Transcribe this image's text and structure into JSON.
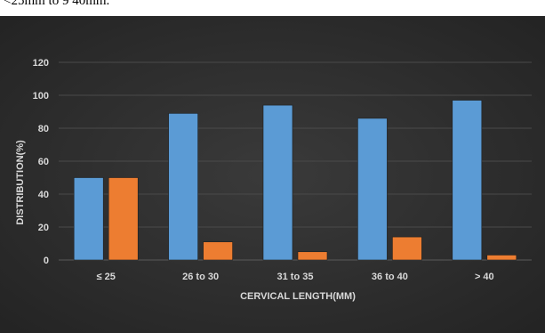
{
  "page": {
    "top_text": "<25mm to 9 40mm."
  },
  "colors": {
    "background": "#2a2a2a",
    "grid": "#4a4a4a",
    "text": "#d9d9d9",
    "series_blue": "#5b9bd5",
    "series_orange": "#ed7d31"
  },
  "chart_data": {
    "type": "bar",
    "title": "",
    "xlabel": "CERVICAL LENGTH(MM)",
    "ylabel": "DISTRIBUTION(%)",
    "ylim": [
      0,
      120
    ],
    "yticks": [
      0,
      20,
      40,
      60,
      80,
      100,
      120
    ],
    "grid": true,
    "legend": "none",
    "categories": [
      "≤ 25",
      "26 to 30",
      "31 to 35",
      "36 to 40",
      "> 40"
    ],
    "series": [
      {
        "color": "#5b9bd5",
        "values": [
          50,
          89,
          94,
          86,
          97
        ]
      },
      {
        "color": "#ed7d31",
        "values": [
          50,
          11,
          5,
          14,
          3
        ]
      }
    ]
  }
}
